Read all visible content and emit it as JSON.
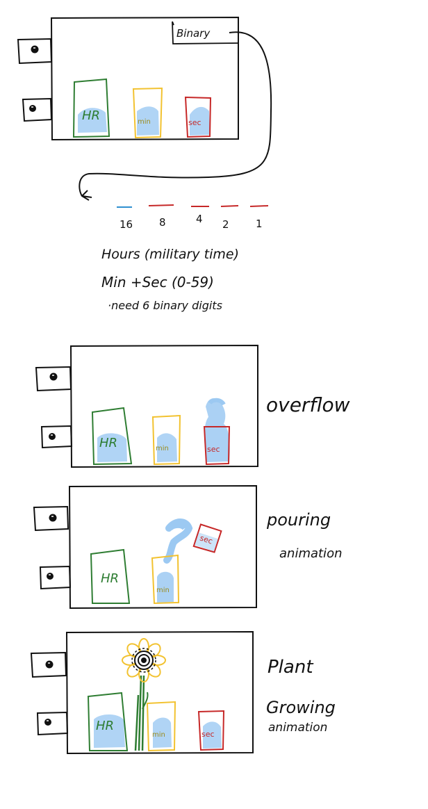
{
  "colors": {
    "ink": "#111111",
    "green": "#2e7d32",
    "yellow": "#f2c230",
    "red": "#c62828",
    "water": "#9cc9f2",
    "blue_dash": "#2f8fd0"
  },
  "panel1": {
    "binary_label": "Binary",
    "hr": "HR",
    "min": "min",
    "sec": "sec"
  },
  "bits": {
    "values": [
      "16",
      "8",
      "4",
      "2",
      "1"
    ]
  },
  "notes": {
    "hours": "Hours (military time)",
    "minsec": "Min +Sec (0-59)",
    "digits": "·need 6 binary digits"
  },
  "panel2": {
    "hr": "HR",
    "min": "min",
    "sec": "sec",
    "label": "overflow"
  },
  "panel3": {
    "hr": "HR",
    "min": "min",
    "sec": "sec",
    "label_line1": "pouring",
    "label_line2": "animation"
  },
  "panel4": {
    "hr": "HR",
    "min": "min",
    "sec": "sec",
    "label_line1": "Plant",
    "label_line2": "Growing",
    "label_line3": "animation"
  },
  "icons": [
    "eye-icon",
    "sunflower-icon",
    "curved-arrow-icon"
  ]
}
